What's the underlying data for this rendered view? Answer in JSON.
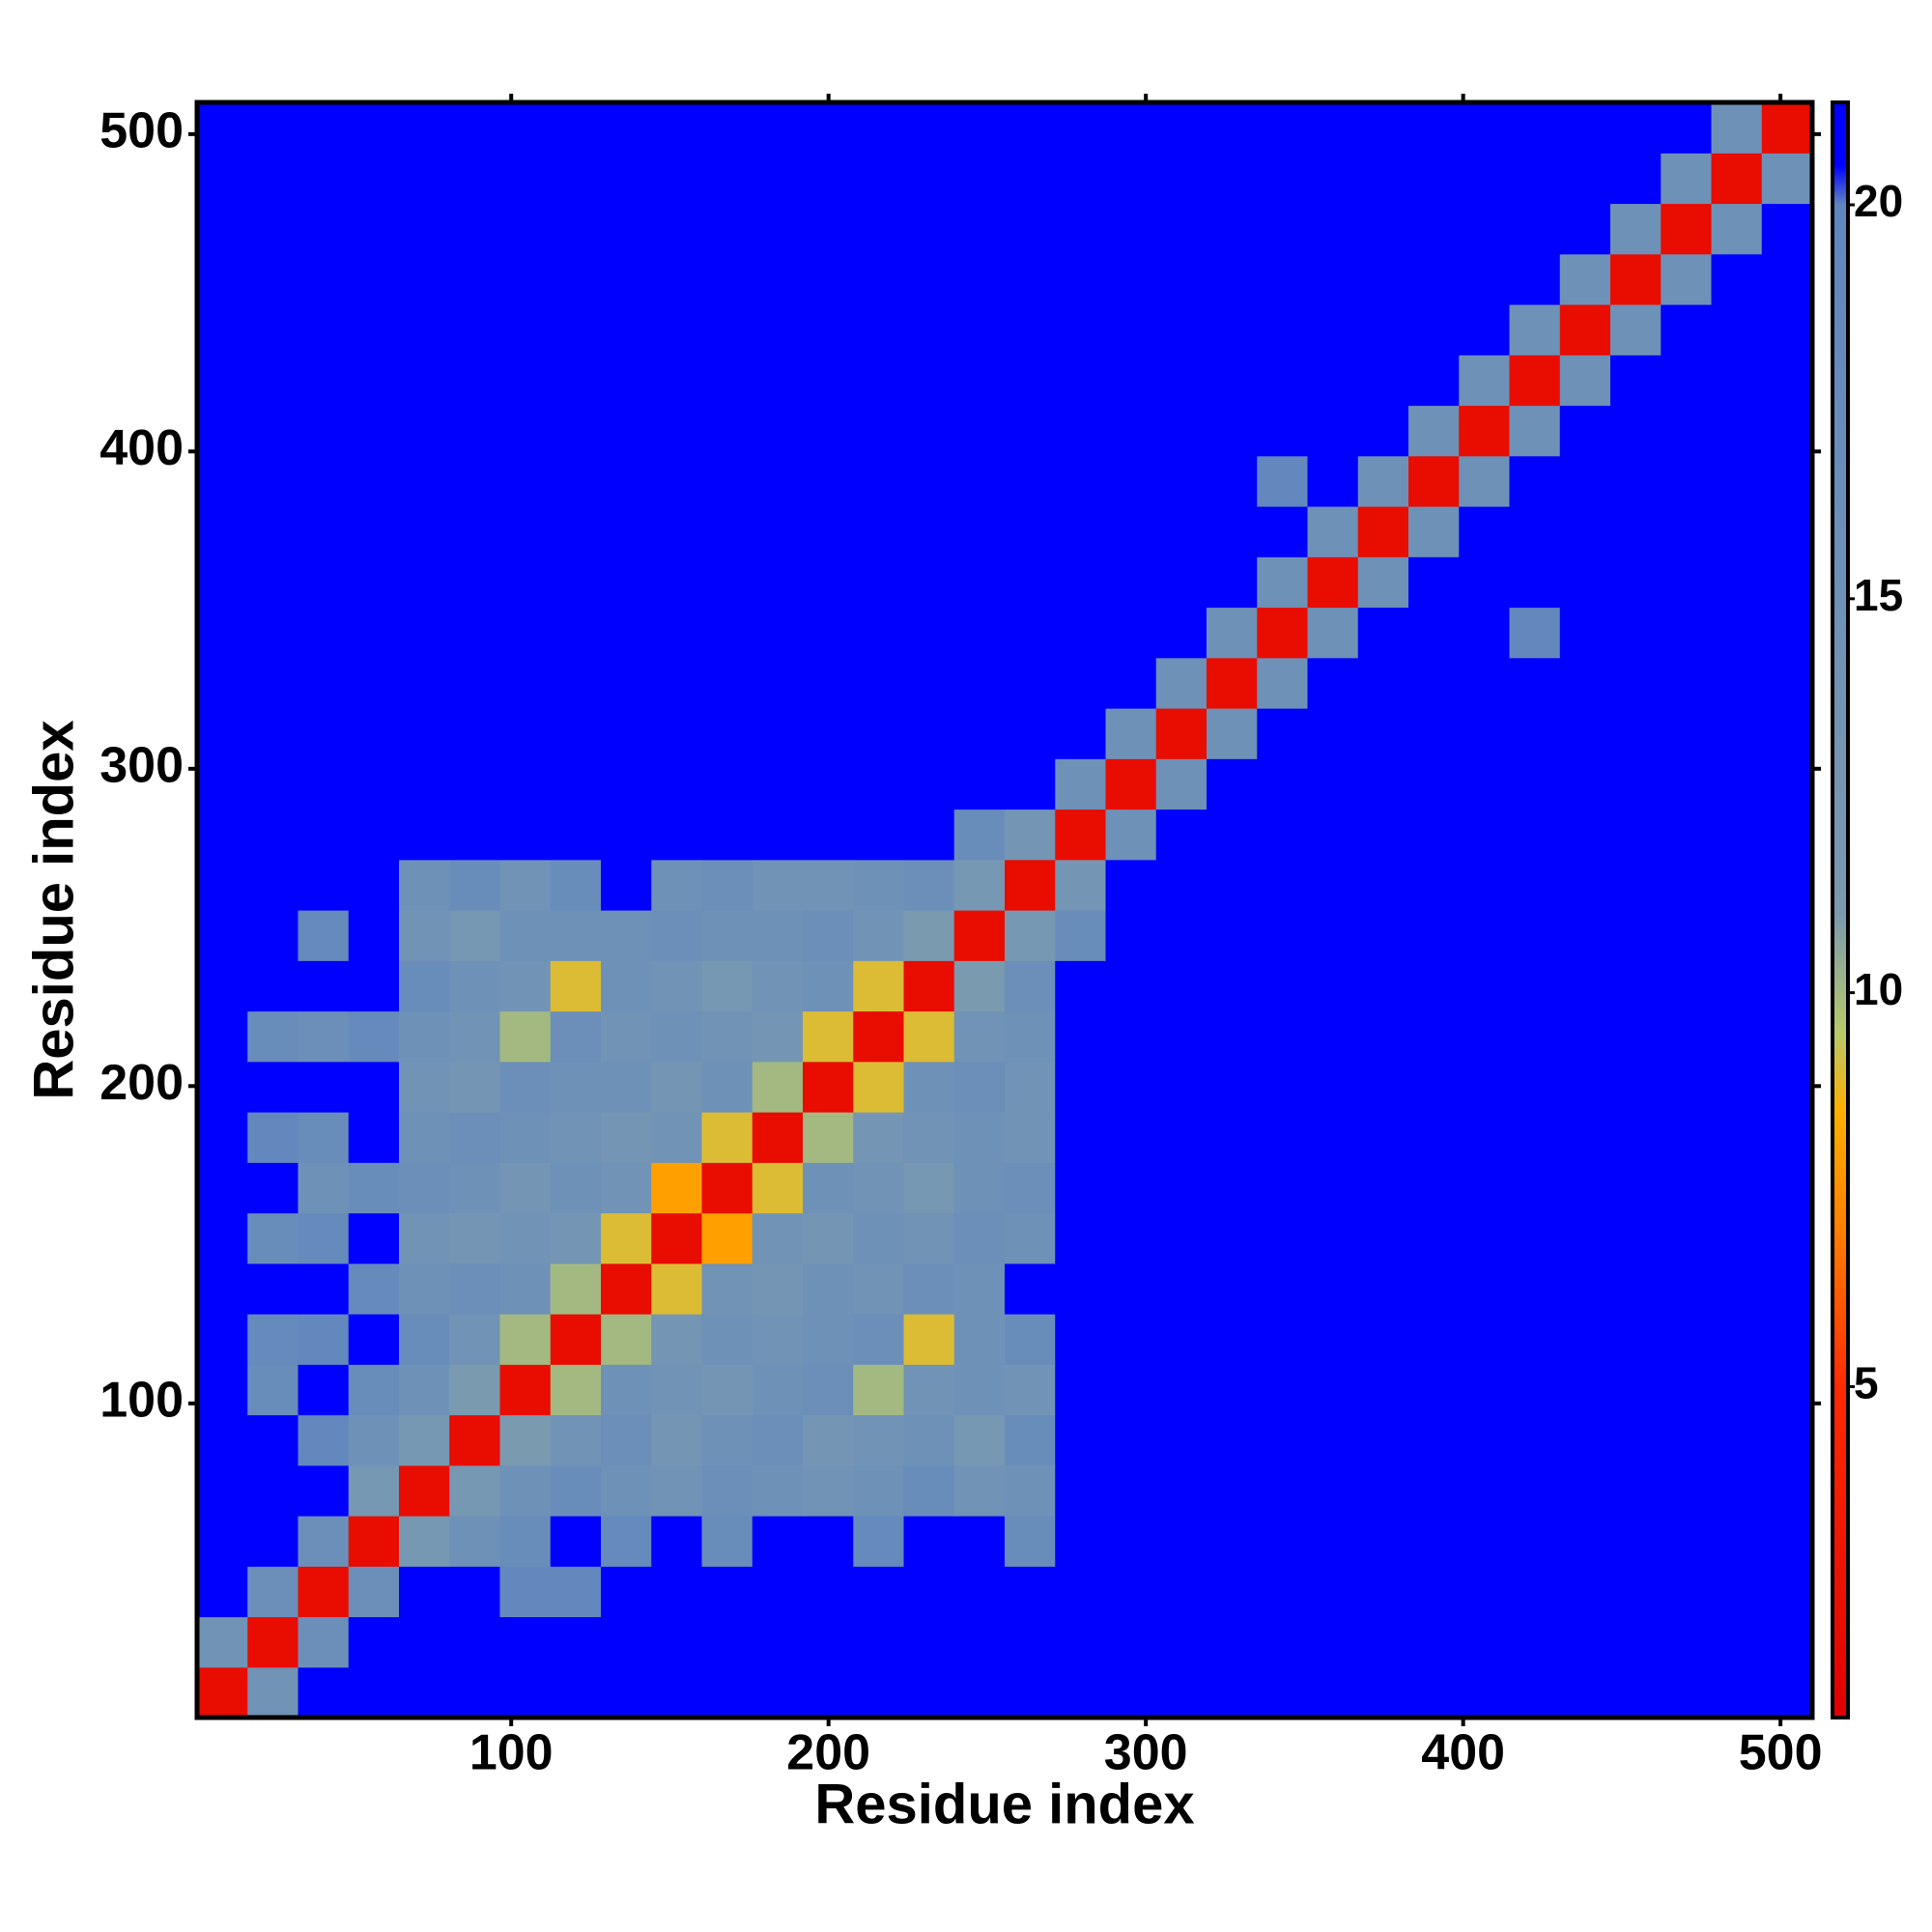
{
  "chart_data": {
    "type": "heatmap",
    "x_label": "Residue index",
    "y_label": "Residue index",
    "xlim": [
      1,
      510
    ],
    "ylim": [
      1,
      510
    ],
    "xticks": [
      100,
      200,
      300,
      400,
      500
    ],
    "yticks": [
      100,
      200,
      300,
      400,
      500
    ],
    "zlim": [
      0.8,
      21.3
    ],
    "zticks": [
      5,
      10,
      15,
      20
    ],
    "colorscale": [
      {
        "value": 0.8,
        "color": "#e00000"
      },
      {
        "value": 5,
        "color": "#ff2a00"
      },
      {
        "value": 7,
        "color": "#ff7f00"
      },
      {
        "value": 8.5,
        "color": "#ffb000"
      },
      {
        "value": 9.5,
        "color": "#b8c86a"
      },
      {
        "value": 11,
        "color": "#7a9ab0"
      },
      {
        "value": 20,
        "color": "#5f86c0"
      },
      {
        "value": 20.5,
        "color": "#0000ff"
      },
      {
        "value": 21.3,
        "color": "#0000ff"
      }
    ],
    "z": [
      [
        2,
        14,
        21,
        21,
        21,
        21,
        21,
        21,
        21,
        21,
        21,
        21,
        21,
        21,
        21,
        21,
        21,
        21,
        21,
        21,
        21,
        21,
        21,
        21,
        21,
        21,
        21,
        21,
        21,
        21,
        21,
        21
      ],
      [
        14,
        2,
        16,
        21,
        21,
        21,
        21,
        21,
        21,
        21,
        21,
        21,
        21,
        21,
        21,
        21,
        21,
        21,
        21,
        21,
        21,
        21,
        21,
        21,
        21,
        21,
        21,
        21,
        21,
        21,
        21,
        21
      ],
      [
        21,
        16,
        2,
        16,
        21,
        21,
        19,
        19,
        21,
        21,
        21,
        21,
        21,
        21,
        21,
        21,
        21,
        21,
        21,
        21,
        21,
        21,
        21,
        21,
        21,
        21,
        21,
        21,
        21,
        21,
        21,
        21
      ],
      [
        21,
        21,
        16,
        2,
        12,
        15,
        17,
        21,
        18,
        21,
        17,
        21,
        21,
        18,
        21,
        21,
        17,
        21,
        21,
        21,
        21,
        21,
        21,
        21,
        21,
        21,
        21,
        21,
        21,
        21,
        21,
        21
      ],
      [
        21,
        21,
        21,
        12,
        2,
        12,
        15,
        17,
        15,
        14,
        16,
        15,
        14,
        15,
        17,
        14,
        15,
        21,
        21,
        21,
        21,
        21,
        21,
        21,
        21,
        21,
        21,
        21,
        21,
        21,
        21,
        21
      ],
      [
        21,
        21,
        19,
        15,
        12,
        2,
        11,
        14,
        16,
        13,
        15,
        16,
        13,
        14,
        15,
        12,
        17,
        21,
        21,
        21,
        21,
        21,
        21,
        21,
        21,
        21,
        21,
        21,
        21,
        21,
        21,
        21
      ],
      [
        21,
        17,
        21,
        17,
        15,
        11,
        2,
        10,
        15,
        14,
        13,
        15,
        16,
        10,
        14,
        15,
        14,
        21,
        21,
        21,
        21,
        21,
        21,
        21,
        21,
        21,
        21,
        21,
        21,
        21,
        21,
        21
      ],
      [
        21,
        18,
        19,
        21,
        17,
        14,
        10,
        2,
        10,
        13,
        15,
        14,
        15,
        16,
        9,
        15,
        17,
        21,
        21,
        21,
        21,
        21,
        21,
        21,
        21,
        21,
        21,
        21,
        21,
        21,
        21,
        21
      ],
      [
        21,
        21,
        21,
        18,
        15,
        16,
        15,
        10,
        2,
        9,
        14,
        13,
        15,
        14,
        16,
        15,
        21,
        21,
        21,
        21,
        21,
        21,
        21,
        21,
        21,
        21,
        21,
        21,
        21,
        21,
        21,
        21
      ],
      [
        21,
        17,
        18,
        21,
        14,
        13,
        14,
        13,
        9,
        2,
        8,
        14,
        13,
        15,
        14,
        16,
        15,
        21,
        21,
        21,
        21,
        21,
        21,
        21,
        21,
        21,
        21,
        21,
        21,
        21,
        21,
        21
      ],
      [
        21,
        21,
        15,
        17,
        16,
        15,
        13,
        15,
        14,
        8,
        2,
        9,
        15,
        14,
        12,
        15,
        16,
        21,
        21,
        21,
        21,
        21,
        21,
        21,
        21,
        21,
        21,
        21,
        21,
        21,
        21,
        21
      ],
      [
        21,
        19,
        17,
        21,
        15,
        16,
        15,
        14,
        13,
        14,
        9,
        2,
        10,
        13,
        14,
        15,
        14,
        21,
        21,
        21,
        21,
        21,
        21,
        21,
        21,
        21,
        21,
        21,
        21,
        21,
        21,
        21
      ],
      [
        21,
        21,
        21,
        21,
        14,
        13,
        16,
        15,
        15,
        13,
        15,
        10,
        2,
        9,
        15,
        16,
        14,
        21,
        21,
        21,
        21,
        21,
        21,
        21,
        21,
        21,
        21,
        21,
        21,
        21,
        21,
        21
      ],
      [
        21,
        17,
        16,
        18,
        15,
        14,
        10,
        16,
        14,
        15,
        14,
        13,
        9,
        2,
        9,
        14,
        15,
        21,
        21,
        21,
        21,
        21,
        21,
        21,
        21,
        21,
        21,
        21,
        21,
        21,
        21,
        21
      ],
      [
        21,
        21,
        21,
        21,
        17,
        15,
        14,
        9,
        15,
        14,
        12,
        14,
        15,
        9,
        2,
        11,
        16,
        21,
        21,
        21,
        21,
        21,
        21,
        21,
        21,
        21,
        21,
        21,
        21,
        21,
        21,
        21
      ],
      [
        21,
        21,
        18,
        21,
        14,
        12,
        15,
        15,
        15,
        16,
        15,
        15,
        16,
        14,
        11,
        2,
        12,
        17,
        21,
        21,
        21,
        21,
        21,
        21,
        21,
        21,
        21,
        21,
        21,
        21,
        21,
        21
      ],
      [
        21,
        21,
        21,
        21,
        15,
        17,
        14,
        17,
        21,
        15,
        16,
        14,
        14,
        15,
        16,
        12,
        2,
        13,
        21,
        21,
        21,
        21,
        21,
        21,
        21,
        21,
        21,
        21,
        21,
        21,
        21,
        21
      ],
      [
        21,
        21,
        21,
        21,
        21,
        21,
        21,
        21,
        21,
        21,
        21,
        21,
        21,
        21,
        21,
        17,
        13,
        2,
        15,
        21,
        21,
        21,
        21,
        21,
        21,
        21,
        21,
        21,
        21,
        21,
        21,
        21
      ],
      [
        21,
        21,
        21,
        21,
        21,
        21,
        21,
        21,
        21,
        21,
        21,
        21,
        21,
        21,
        21,
        21,
        21,
        15,
        2,
        15,
        21,
        21,
        21,
        21,
        21,
        21,
        21,
        21,
        21,
        21,
        21,
        21
      ],
      [
        21,
        21,
        21,
        21,
        21,
        21,
        21,
        21,
        21,
        21,
        21,
        21,
        21,
        21,
        21,
        21,
        21,
        21,
        15,
        2,
        15,
        21,
        21,
        21,
        21,
        21,
        21,
        21,
        21,
        21,
        21,
        21
      ],
      [
        21,
        21,
        21,
        21,
        21,
        21,
        21,
        21,
        21,
        21,
        21,
        21,
        21,
        21,
        21,
        21,
        21,
        21,
        21,
        15,
        2,
        15,
        21,
        21,
        21,
        21,
        21,
        21,
        21,
        21,
        21,
        21
      ],
      [
        21,
        21,
        21,
        21,
        21,
        21,
        21,
        21,
        21,
        21,
        21,
        21,
        21,
        21,
        21,
        21,
        21,
        21,
        21,
        21,
        15,
        2,
        15,
        21,
        21,
        21,
        19,
        21,
        21,
        21,
        21,
        21
      ],
      [
        21,
        21,
        21,
        21,
        21,
        21,
        21,
        21,
        21,
        21,
        21,
        21,
        21,
        21,
        21,
        21,
        21,
        21,
        21,
        21,
        21,
        15,
        2,
        15,
        21,
        21,
        21,
        21,
        21,
        21,
        21,
        21
      ],
      [
        21,
        21,
        21,
        21,
        21,
        21,
        21,
        21,
        21,
        21,
        21,
        21,
        21,
        21,
        21,
        21,
        21,
        21,
        21,
        21,
        21,
        21,
        15,
        2,
        15,
        21,
        21,
        21,
        21,
        21,
        21,
        21
      ],
      [
        21,
        21,
        21,
        21,
        21,
        21,
        21,
        21,
        21,
        21,
        21,
        21,
        21,
        21,
        21,
        21,
        21,
        21,
        21,
        21,
        21,
        19,
        21,
        15,
        2,
        15,
        21,
        21,
        21,
        21,
        21,
        21
      ],
      [
        21,
        21,
        21,
        21,
        21,
        21,
        21,
        21,
        21,
        21,
        21,
        21,
        21,
        21,
        21,
        21,
        21,
        21,
        21,
        21,
        21,
        21,
        21,
        21,
        15,
        2,
        15,
        21,
        21,
        21,
        21,
        21
      ],
      [
        21,
        21,
        21,
        21,
        21,
        21,
        21,
        21,
        21,
        21,
        21,
        21,
        21,
        21,
        21,
        21,
        21,
        21,
        21,
        21,
        21,
        21,
        21,
        21,
        21,
        15,
        2,
        15,
        21,
        21,
        21,
        21
      ],
      [
        21,
        21,
        21,
        21,
        21,
        21,
        21,
        21,
        21,
        21,
        21,
        21,
        21,
        21,
        21,
        21,
        21,
        21,
        21,
        21,
        21,
        21,
        21,
        21,
        21,
        21,
        15,
        2,
        15,
        21,
        21,
        21
      ],
      [
        21,
        21,
        21,
        21,
        21,
        21,
        21,
        21,
        21,
        21,
        21,
        21,
        21,
        21,
        21,
        21,
        21,
        21,
        21,
        21,
        21,
        21,
        21,
        21,
        21,
        21,
        21,
        15,
        2,
        15,
        21,
        21
      ],
      [
        21,
        21,
        21,
        21,
        21,
        21,
        21,
        21,
        21,
        21,
        21,
        21,
        21,
        21,
        21,
        21,
        21,
        21,
        21,
        21,
        21,
        21,
        21,
        21,
        21,
        21,
        21,
        21,
        15,
        2,
        15,
        21
      ],
      [
        21,
        21,
        21,
        21,
        21,
        21,
        21,
        21,
        21,
        21,
        21,
        21,
        21,
        21,
        21,
        21,
        21,
        21,
        21,
        21,
        21,
        21,
        21,
        21,
        21,
        21,
        21,
        21,
        21,
        15,
        2,
        15
      ],
      [
        21,
        21,
        21,
        21,
        21,
        21,
        21,
        21,
        21,
        21,
        21,
        21,
        21,
        21,
        21,
        21,
        21,
        21,
        21,
        21,
        21,
        21,
        21,
        21,
        21,
        21,
        21,
        21,
        21,
        21,
        15,
        2
      ]
    ]
  }
}
